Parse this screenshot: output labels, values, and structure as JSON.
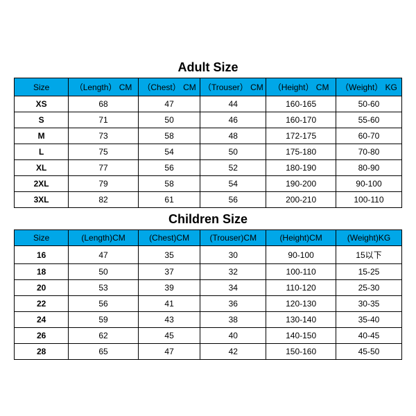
{
  "colors": {
    "header_bg": "#00a7e8",
    "border": "#000000",
    "background": "#ffffff",
    "text": "#000000"
  },
  "typography": {
    "title_fontsize": 18,
    "cell_fontsize": 12,
    "font_family": "Arial, sans-serif"
  },
  "adult": {
    "title": "Adult Size",
    "columns": [
      "Size",
      "（Length） CM",
      "（Chest） CM",
      "（Trouser） CM",
      "（Height） CM",
      "（Weight） KG"
    ],
    "rows": [
      [
        "XS",
        "68",
        "47",
        "44",
        "160-165",
        "50-60"
      ],
      [
        "S",
        "71",
        "50",
        "46",
        "160-170",
        "55-60"
      ],
      [
        "M",
        "73",
        "58",
        "48",
        "172-175",
        "60-70"
      ],
      [
        "L",
        "75",
        "54",
        "50",
        "175-180",
        "70-80"
      ],
      [
        "XL",
        "77",
        "56",
        "52",
        "180-190",
        "80-90"
      ],
      [
        "2XL",
        "79",
        "58",
        "54",
        "190-200",
        "90-100"
      ],
      [
        "3XL",
        "82",
        "61",
        "56",
        "200-210",
        "100-110"
      ]
    ]
  },
  "children": {
    "title": "Children Size",
    "columns": [
      "Size",
      "(Length)CM",
      "(Chest)CM",
      "(Trouser)CM",
      "(Height)CM",
      "(Weight)KG"
    ],
    "rows": [
      [
        "16",
        "47",
        "35",
        "30",
        "90-100",
        "15以下"
      ],
      [
        "18",
        "50",
        "37",
        "32",
        "100-110",
        "15-25"
      ],
      [
        "20",
        "53",
        "39",
        "34",
        "110-120",
        "25-30"
      ],
      [
        "22",
        "56",
        "41",
        "36",
        "120-130",
        "30-35"
      ],
      [
        "24",
        "59",
        "43",
        "38",
        "130-140",
        "35-40"
      ],
      [
        "26",
        "62",
        "45",
        "40",
        "140-150",
        "40-45"
      ],
      [
        "28",
        "65",
        "47",
        "42",
        "150-160",
        "45-50"
      ]
    ]
  }
}
